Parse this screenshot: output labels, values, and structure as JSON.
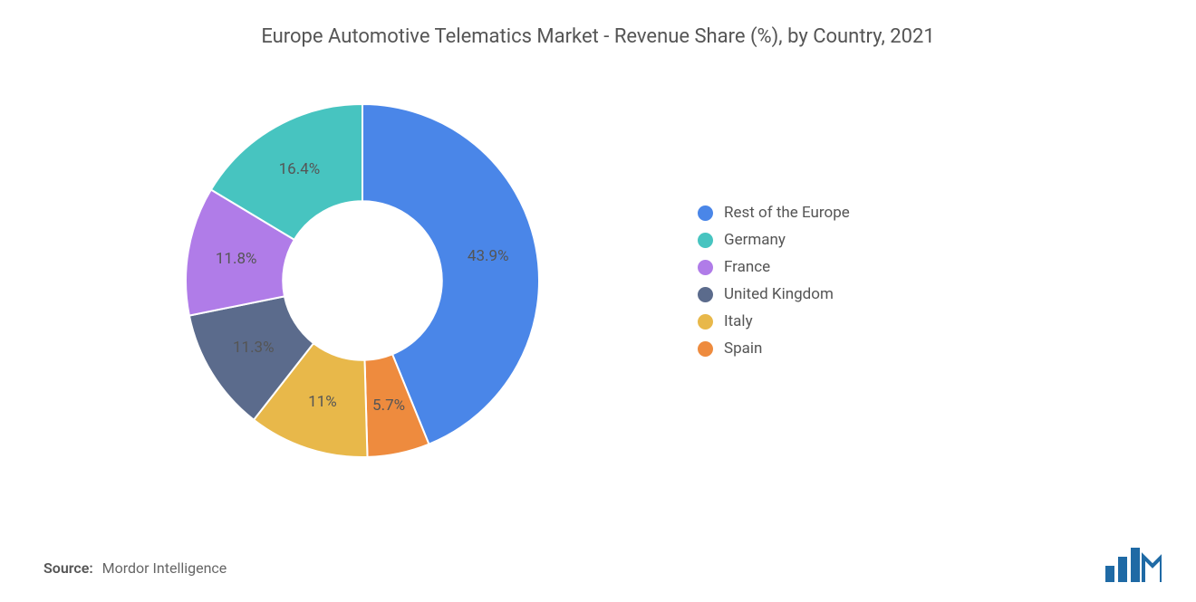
{
  "title": "Europe Automotive Telematics Market - Revenue Share (%), by Country, 2021",
  "source_label": "Source:",
  "source_value": "Mordor Intelligence",
  "chart": {
    "type": "donut",
    "inner_radius_ratio": 0.45,
    "background_color": "#ffffff",
    "label_fontsize": 17,
    "label_color": "#555555",
    "start_angle_deg": -90,
    "slices": [
      {
        "label": "Rest of the Europe",
        "value": 43.9,
        "display": "43.9%",
        "color": "#4a86e8"
      },
      {
        "label": "Spain",
        "value": 5.7,
        "display": "5.7%",
        "color": "#ee8b3e"
      },
      {
        "label": "Italy",
        "value": 11.0,
        "display": "11%",
        "color": "#e8b84a"
      },
      {
        "label": "United Kingdom",
        "value": 11.3,
        "display": "11.3%",
        "color": "#5b6b8c"
      },
      {
        "label": "France",
        "value": 11.8,
        "display": "11.8%",
        "color": "#b07ce8"
      },
      {
        "label": "Germany",
        "value": 16.4,
        "display": "16.4%",
        "color": "#47c4c0"
      }
    ],
    "legend_order": [
      "Rest of the Europe",
      "Germany",
      "France",
      "United Kingdom",
      "Italy",
      "Spain"
    ]
  },
  "logo": {
    "bar_color": "#1f6aa5",
    "accent_color": "#1f6aa5"
  }
}
